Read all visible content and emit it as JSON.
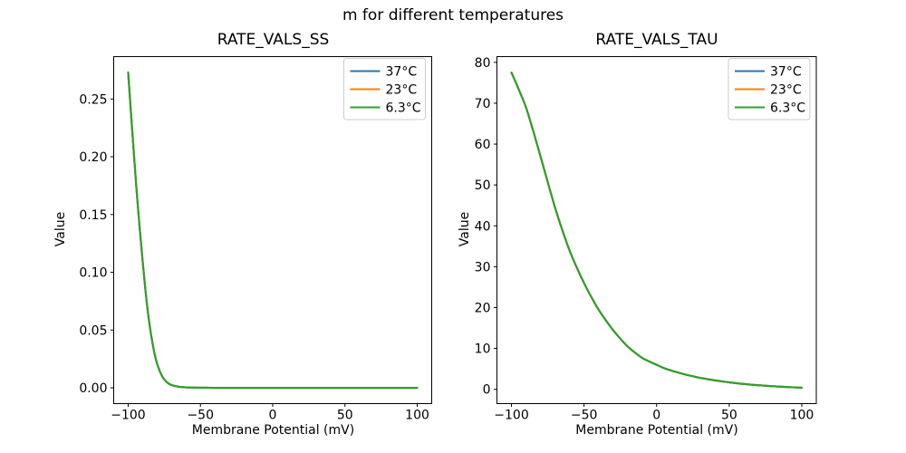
{
  "figure": {
    "suptitle": "m for different temperatures",
    "background": "#ffffff"
  },
  "colors": {
    "series": [
      "#1f77b4",
      "#ff7f0e",
      "#2ca02c"
    ],
    "axis": "#000000",
    "legend_border": "#cccccc",
    "legend_bg": "rgba(255,255,255,0.8)"
  },
  "chart_data": [
    {
      "type": "line",
      "title": "RATE_VALS_SS",
      "xlabel": "Membrane Potential (mV)",
      "ylabel": "Value",
      "xlim": [
        -110,
        110
      ],
      "ylim": [
        -0.0137,
        0.2867
      ],
      "xticks": [
        -100,
        -50,
        0,
        50,
        100
      ],
      "xtick_labels": [
        "−100",
        "−50",
        "0",
        "50",
        "100"
      ],
      "yticks": [
        0.0,
        0.05,
        0.1,
        0.15,
        0.2,
        0.25
      ],
      "ytick_labels": [
        "0.00",
        "0.05",
        "0.10",
        "0.15",
        "0.20",
        "0.25"
      ],
      "legend_position": "upper right",
      "grid": false,
      "x": [
        -100,
        -98,
        -96,
        -94,
        -92,
        -90,
        -88,
        -86,
        -84,
        -82,
        -80,
        -78,
        -76,
        -74,
        -72,
        -70,
        -65,
        -60,
        -55,
        -50,
        -45,
        -40,
        -30,
        -20,
        -10,
        0,
        10,
        20,
        30,
        40,
        50,
        60,
        70,
        80,
        90,
        100
      ],
      "series": [
        {
          "name": "37°C",
          "color": "#1f77b4",
          "values": [
            0.273,
            0.237,
            0.202,
            0.168,
            0.138,
            0.11,
            0.084,
            0.062,
            0.045,
            0.031,
            0.021,
            0.014,
            0.009,
            0.0058,
            0.0037,
            0.0024,
            0.0009,
            0.0004,
            0.0002,
            0.0001,
            5e-05,
            0,
            0,
            0,
            0,
            0,
            0,
            0,
            0,
            0,
            0,
            0,
            0,
            0,
            0,
            0
          ]
        },
        {
          "name": "23°C",
          "color": "#ff7f0e",
          "values": [
            0.273,
            0.237,
            0.202,
            0.168,
            0.138,
            0.11,
            0.084,
            0.062,
            0.045,
            0.031,
            0.021,
            0.014,
            0.009,
            0.0058,
            0.0037,
            0.0024,
            0.0009,
            0.0004,
            0.0002,
            0.0001,
            5e-05,
            0,
            0,
            0,
            0,
            0,
            0,
            0,
            0,
            0,
            0,
            0,
            0,
            0,
            0,
            0
          ]
        },
        {
          "name": "6.3°C",
          "color": "#2ca02c",
          "values": [
            0.273,
            0.237,
            0.202,
            0.168,
            0.138,
            0.11,
            0.084,
            0.062,
            0.045,
            0.031,
            0.021,
            0.014,
            0.009,
            0.0058,
            0.0037,
            0.0024,
            0.0009,
            0.0004,
            0.0002,
            0.0001,
            5e-05,
            0,
            0,
            0,
            0,
            0,
            0,
            0,
            0,
            0,
            0,
            0,
            0,
            0,
            0,
            0
          ]
        }
      ]
    },
    {
      "type": "line",
      "title": "RATE_VALS_TAU",
      "xlabel": "Membrane Potential (mV)",
      "ylabel": "Value",
      "xlim": [
        -110,
        110
      ],
      "ylim": [
        -3.5,
        81.4
      ],
      "xticks": [
        -100,
        -50,
        0,
        50,
        100
      ],
      "xtick_labels": [
        "−100",
        "−50",
        "0",
        "50",
        "100"
      ],
      "yticks": [
        0,
        10,
        20,
        30,
        40,
        50,
        60,
        70,
        80
      ],
      "ytick_labels": [
        "0",
        "10",
        "20",
        "30",
        "40",
        "50",
        "60",
        "70",
        "80"
      ],
      "legend_position": "upper right",
      "grid": false,
      "x": [
        -100,
        -95,
        -90,
        -85,
        -80,
        -75,
        -70,
        -65,
        -60,
        -55,
        -50,
        -45,
        -40,
        -35,
        -30,
        -25,
        -20,
        -15,
        -10,
        -5,
        0,
        5,
        10,
        15,
        20,
        25,
        30,
        35,
        40,
        45,
        50,
        60,
        70,
        80,
        90,
        100
      ],
      "series": [
        {
          "name": "37°C",
          "color": "#1f77b4",
          "values": [
            77.5,
            73.4,
            69.0,
            63.2,
            57.0,
            50.7,
            44.5,
            39.0,
            34.0,
            29.8,
            26.0,
            22.6,
            19.5,
            16.9,
            14.5,
            12.4,
            10.5,
            9.0,
            7.7,
            6.8,
            6.0,
            5.2,
            4.6,
            4.1,
            3.6,
            3.2,
            2.8,
            2.5,
            2.2,
            1.95,
            1.7,
            1.3,
            1.0,
            0.75,
            0.55,
            0.4
          ]
        },
        {
          "name": "23°C",
          "color": "#ff7f0e",
          "values": [
            77.5,
            73.4,
            69.0,
            63.2,
            57.0,
            50.7,
            44.5,
            39.0,
            34.0,
            29.8,
            26.0,
            22.6,
            19.5,
            16.9,
            14.5,
            12.4,
            10.5,
            9.0,
            7.7,
            6.8,
            6.0,
            5.2,
            4.6,
            4.1,
            3.6,
            3.2,
            2.8,
            2.5,
            2.2,
            1.95,
            1.7,
            1.3,
            1.0,
            0.75,
            0.55,
            0.4
          ]
        },
        {
          "name": "6.3°C",
          "color": "#2ca02c",
          "values": [
            77.5,
            73.4,
            69.0,
            63.2,
            57.0,
            50.7,
            44.5,
            39.0,
            34.0,
            29.8,
            26.0,
            22.6,
            19.5,
            16.9,
            14.5,
            12.4,
            10.5,
            9.0,
            7.7,
            6.8,
            6.0,
            5.2,
            4.6,
            4.1,
            3.6,
            3.2,
            2.8,
            2.5,
            2.2,
            1.95,
            1.7,
            1.3,
            1.0,
            0.75,
            0.55,
            0.4
          ]
        }
      ]
    }
  ]
}
